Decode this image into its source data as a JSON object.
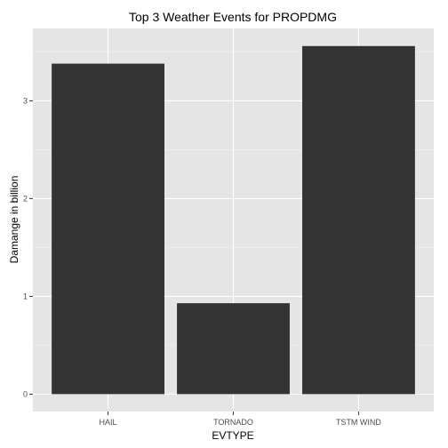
{
  "chart_data": {
    "type": "bar",
    "title": "Top 3 Weather Events for PROPDMG",
    "xlabel": "EVTYPE",
    "ylabel": "Damange in billion",
    "categories": [
      "HAIL",
      "TORNADO",
      "TSTM WIND"
    ],
    "values": [
      3.38,
      0.93,
      3.56
    ],
    "ylim": [
      -0.178,
      3.74
    ],
    "yticks": [
      0,
      1,
      2,
      3
    ],
    "ytick_labels": [
      "0",
      "1",
      "2",
      "3"
    ],
    "grid": true,
    "colors": {
      "bar": "#333333",
      "panel": "#e5e5e5",
      "grid_major": "#ffffff",
      "grid_minor": "#f2f2f2"
    }
  }
}
